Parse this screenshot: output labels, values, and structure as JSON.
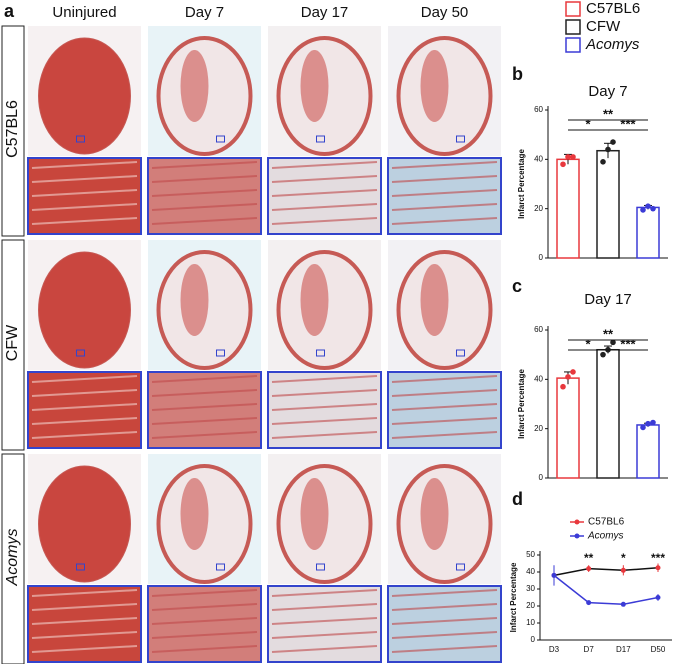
{
  "panel_a": {
    "label": "a",
    "columns": [
      "Uninjured",
      "Day 7",
      "Day 17",
      "Day 50"
    ],
    "rows": [
      {
        "name": "C57BL6"
      },
      {
        "name": "CFW"
      },
      {
        "name": "Acomys",
        "style": "italic"
      }
    ]
  },
  "legend": [
    {
      "name": "C57BL6",
      "color": "#e8383d"
    },
    {
      "name": "CFW",
      "color": "#222222"
    },
    {
      "name": "Acomys",
      "color": "#3b3bd6",
      "style": "italic"
    }
  ],
  "chart_data": [
    {
      "type": "bar",
      "panel": "b",
      "title": "Day 7",
      "ylabel": "Infarct Percentage",
      "categories": [
        null,
        null,
        null
      ],
      "values": [
        40,
        43.5,
        20.5
      ],
      "errors": [
        2,
        3,
        0.8
      ],
      "colors": [
        "#e8383d",
        "#222222",
        "#3b3bd6"
      ],
      "points": [
        [
          38,
          41,
          41
        ],
        [
          39,
          44,
          47
        ],
        [
          19.5,
          21,
          20
        ]
      ],
      "annotations": [
        {
          "text": "**",
          "between": [
            0,
            2
          ]
        },
        {
          "text": "*",
          "between": [
            0,
            1
          ]
        },
        {
          "text": "***",
          "between": [
            1,
            2
          ]
        }
      ],
      "ylim": [
        0,
        60
      ],
      "yticks": [
        0,
        20,
        40,
        60
      ]
    },
    {
      "type": "bar",
      "panel": "c",
      "title": "Day 17",
      "ylabel": "Infarct Percentage",
      "categories": [
        null,
        null,
        null
      ],
      "values": [
        40.5,
        52,
        21.5
      ],
      "errors": [
        2.5,
        1.5,
        0.7
      ],
      "colors": [
        "#e8383d",
        "#222222",
        "#3b3bd6"
      ],
      "points": [
        [
          37,
          41,
          43
        ],
        [
          50,
          52,
          55
        ],
        [
          20.5,
          22,
          22.5
        ]
      ],
      "annotations": [
        {
          "text": "**",
          "between": [
            0,
            2
          ]
        },
        {
          "text": "*",
          "between": [
            0,
            1
          ]
        },
        {
          "text": "***",
          "between": [
            1,
            2
          ]
        }
      ],
      "ylim": [
        0,
        60
      ],
      "yticks": [
        0,
        20,
        40,
        60
      ]
    },
    {
      "type": "line",
      "panel": "d",
      "ylabel": "Infarct Percentage",
      "categories": [
        "D3",
        "D7",
        "D17",
        "D50"
      ],
      "series": [
        {
          "name": "C57BL6",
          "color": "#e8383d",
          "values": [
            38,
            42,
            41,
            42.5
          ],
          "errors": [
            5,
            2,
            3,
            2.5
          ]
        },
        {
          "name": "Acomys",
          "color": "#3b3bd6",
          "style": "italic",
          "values": [
            38,
            22,
            21,
            25
          ],
          "errors": [
            6,
            1,
            0.5,
            2
          ]
        }
      ],
      "annotations": [
        {
          "text": "**",
          "at": 1
        },
        {
          "text": "*",
          "at": 2
        },
        {
          "text": "***",
          "at": 3
        }
      ],
      "ylim": [
        0,
        50
      ],
      "yticks": [
        0,
        10,
        20,
        30,
        40,
        50
      ]
    }
  ]
}
